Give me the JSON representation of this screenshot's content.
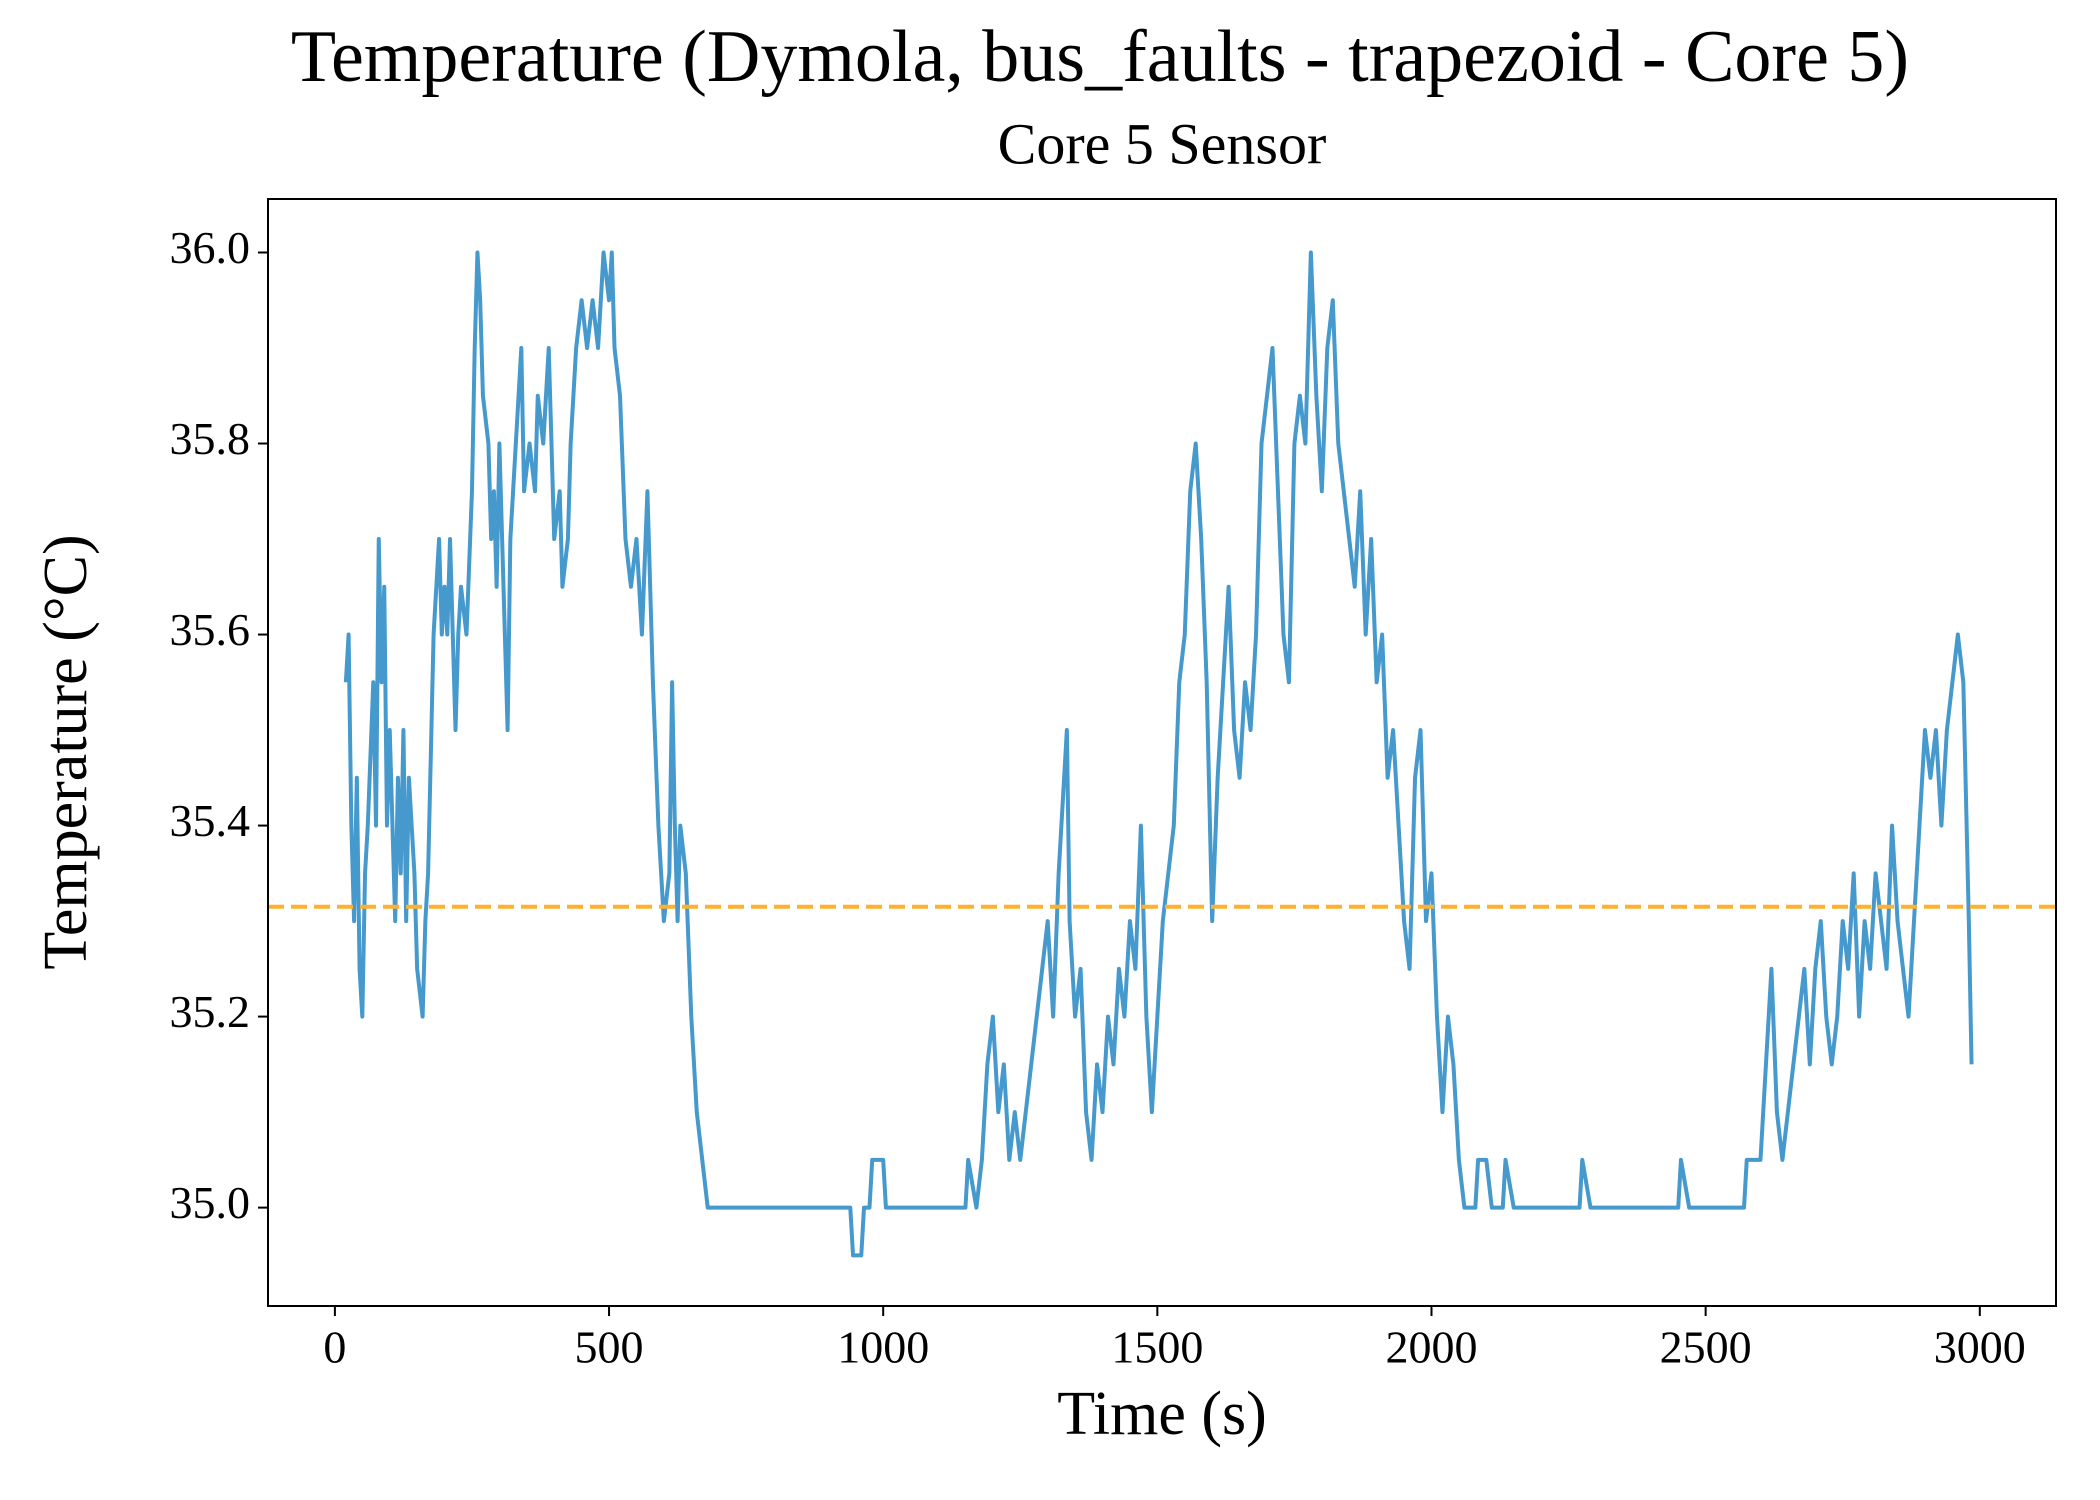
{
  "chart_data": {
    "type": "line",
    "title": "Temperature (Dymola, bus_faults - trapezoid - Core 5)",
    "subtitle": "Core 5 Sensor",
    "xlabel": "Time (s)",
    "ylabel": "Temperature (°C)",
    "x": [
      20,
      25,
      30,
      35,
      40,
      45,
      50,
      55,
      60,
      70,
      75,
      80,
      85,
      90,
      95,
      100,
      105,
      110,
      115,
      120,
      125,
      130,
      135,
      145,
      150,
      160,
      165,
      170,
      180,
      190,
      195,
      200,
      205,
      210,
      220,
      225,
      230,
      240,
      250,
      255,
      260,
      265,
      270,
      280,
      285,
      290,
      295,
      300,
      305,
      315,
      320,
      330,
      340,
      345,
      355,
      365,
      370,
      380,
      390,
      400,
      410,
      415,
      425,
      430,
      440,
      450,
      460,
      470,
      480,
      490,
      500,
      505,
      510,
      520,
      530,
      540,
      550,
      560,
      570,
      580,
      590,
      600,
      610,
      615,
      620,
      625,
      630,
      640,
      650,
      660,
      670,
      680,
      700,
      800,
      900,
      940,
      945,
      960,
      965,
      975,
      980,
      1000,
      1005,
      1100,
      1150,
      1155,
      1170,
      1180,
      1190,
      1200,
      1210,
      1220,
      1230,
      1240,
      1250,
      1260,
      1270,
      1280,
      1290,
      1300,
      1310,
      1320,
      1330,
      1335,
      1340,
      1350,
      1360,
      1370,
      1380,
      1390,
      1400,
      1410,
      1420,
      1430,
      1440,
      1450,
      1460,
      1470,
      1480,
      1490,
      1500,
      1510,
      1520,
      1530,
      1540,
      1550,
      1560,
      1570,
      1580,
      1590,
      1600,
      1610,
      1620,
      1630,
      1640,
      1650,
      1660,
      1670,
      1680,
      1690,
      1700,
      1710,
      1720,
      1730,
      1740,
      1750,
      1760,
      1770,
      1780,
      1790,
      1800,
      1810,
      1820,
      1830,
      1840,
      1850,
      1860,
      1870,
      1880,
      1890,
      1900,
      1910,
      1920,
      1930,
      1940,
      1950,
      1960,
      1970,
      1980,
      1990,
      2000,
      2010,
      2020,
      2030,
      2040,
      2050,
      2060,
      2080,
      2085,
      2100,
      2110,
      2130,
      2135,
      2150,
      2270,
      2275,
      2290,
      2450,
      2455,
      2470,
      2570,
      2575,
      2600,
      2610,
      2620,
      2630,
      2640,
      2650,
      2660,
      2670,
      2680,
      2690,
      2700,
      2710,
      2720,
      2730,
      2740,
      2750,
      2760,
      2770,
      2780,
      2790,
      2800,
      2810,
      2820,
      2830,
      2840,
      2850,
      2860,
      2870,
      2880,
      2890,
      2900,
      2910,
      2920,
      2930,
      2940,
      2950,
      2960,
      2970,
      2980,
      2985
    ],
    "series": [
      {
        "color": "#4599cc",
        "values": [
          35.55,
          35.6,
          35.4,
          35.3,
          35.45,
          35.25,
          35.2,
          35.35,
          35.4,
          35.55,
          35.4,
          35.7,
          35.55,
          35.65,
          35.4,
          35.5,
          35.4,
          35.3,
          35.45,
          35.35,
          35.5,
          35.3,
          35.45,
          35.35,
          35.25,
          35.2,
          35.3,
          35.35,
          35.6,
          35.7,
          35.6,
          35.65,
          35.6,
          35.7,
          35.5,
          35.6,
          35.65,
          35.6,
          35.75,
          35.9,
          36.0,
          35.95,
          35.85,
          35.8,
          35.7,
          35.75,
          35.65,
          35.8,
          35.7,
          35.5,
          35.7,
          35.8,
          35.9,
          35.75,
          35.8,
          35.75,
          35.85,
          35.8,
          35.9,
          35.7,
          35.75,
          35.65,
          35.7,
          35.8,
          35.9,
          35.95,
          35.9,
          35.95,
          35.9,
          36.0,
          35.95,
          36.0,
          35.9,
          35.85,
          35.7,
          35.65,
          35.7,
          35.6,
          35.75,
          35.55,
          35.4,
          35.3,
          35.35,
          35.55,
          35.4,
          35.3,
          35.4,
          35.35,
          35.2,
          35.1,
          35.05,
          35.0,
          35.0,
          35.0,
          35.0,
          35.0,
          34.95,
          34.95,
          35.0,
          35.0,
          35.05,
          35.05,
          35.0,
          35.0,
          35.0,
          35.05,
          35.0,
          35.05,
          35.15,
          35.2,
          35.1,
          35.15,
          35.05,
          35.1,
          35.05,
          35.1,
          35.15,
          35.2,
          35.25,
          35.3,
          35.2,
          35.35,
          35.45,
          35.5,
          35.3,
          35.2,
          35.25,
          35.1,
          35.05,
          35.15,
          35.1,
          35.2,
          35.15,
          35.25,
          35.2,
          35.3,
          35.25,
          35.4,
          35.2,
          35.1,
          35.2,
          35.3,
          35.35,
          35.4,
          35.55,
          35.6,
          35.75,
          35.8,
          35.7,
          35.55,
          35.3,
          35.45,
          35.55,
          35.65,
          35.5,
          35.45,
          35.55,
          35.5,
          35.6,
          35.8,
          35.85,
          35.9,
          35.75,
          35.6,
          35.55,
          35.8,
          35.85,
          35.8,
          36.0,
          35.85,
          35.75,
          35.9,
          35.95,
          35.8,
          35.75,
          35.7,
          35.65,
          35.75,
          35.6,
          35.7,
          35.55,
          35.6,
          35.45,
          35.5,
          35.4,
          35.3,
          35.25,
          35.45,
          35.5,
          35.3,
          35.35,
          35.2,
          35.1,
          35.2,
          35.15,
          35.05,
          35.0,
          35.0,
          35.05,
          35.05,
          35.0,
          35.0,
          35.05,
          35.0,
          35.0,
          35.05,
          35.0,
          35.0,
          35.05,
          35.0,
          35.0,
          35.05,
          35.05,
          35.15,
          35.25,
          35.1,
          35.05,
          35.1,
          35.15,
          35.2,
          35.25,
          35.15,
          35.25,
          35.3,
          35.2,
          35.15,
          35.2,
          35.3,
          35.25,
          35.35,
          35.2,
          35.3,
          35.25,
          35.35,
          35.3,
          35.25,
          35.4,
          35.3,
          35.25,
          35.2,
          35.3,
          35.4,
          35.5,
          35.45,
          35.5,
          35.4,
          35.5,
          35.55,
          35.6,
          35.55,
          35.3,
          35.15
        ]
      }
    ],
    "mean_line": {
      "value": 35.315,
      "color": "#ffb02e"
    },
    "xlim": [
      -122,
      3139
    ],
    "ylim": [
      34.897,
      36.056
    ],
    "xticks": [
      0,
      500,
      1000,
      1500,
      2000,
      2500,
      3000
    ],
    "yticks": [
      {
        "value": 35.0,
        "label": "35.0"
      },
      35.2,
      35.4,
      35.6,
      35.8,
      {
        "value": 36.0,
        "label": "36.0"
      }
    ]
  }
}
